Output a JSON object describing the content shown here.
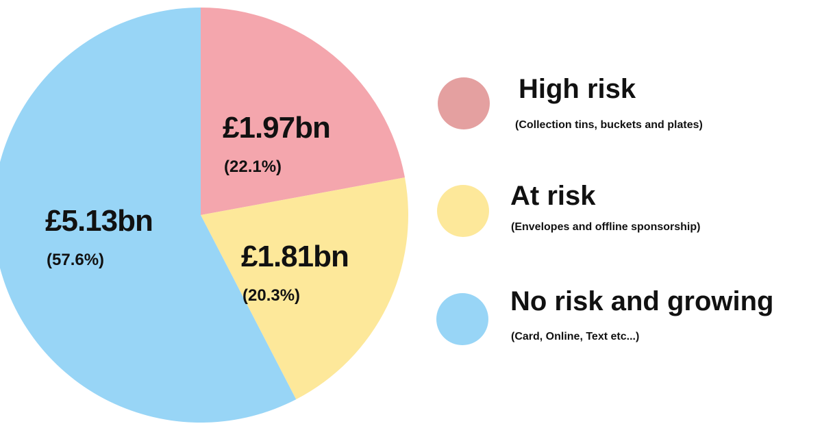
{
  "chart_data": {
    "type": "pie",
    "start": "top",
    "direction": "clockwise",
    "slices": [
      {
        "name": "High risk",
        "description": "(Collection tins, buckets and plates)",
        "value_label": "£1.97bn",
        "value": 1.97,
        "percent": 22.1,
        "percent_label": "(22.1%)",
        "color": "#f4a6ad"
      },
      {
        "name": "At risk",
        "description": "(Envelopes and offline sponsorship)",
        "value_label": "£1.81bn",
        "value": 1.81,
        "percent": 20.3,
        "percent_label": "(20.3%)",
        "color": "#fde89a"
      },
      {
        "name": "No risk and growing",
        "description": "(Card, Online, Text etc...)",
        "value_label": "£5.13bn",
        "value": 5.13,
        "percent": 57.6,
        "percent_label": "(57.6%)",
        "color": "#98d5f6"
      }
    ],
    "legend": {
      "placement": "right",
      "colors": [
        "#e4a0a0",
        "#fde89a",
        "#98d5f6"
      ]
    }
  }
}
